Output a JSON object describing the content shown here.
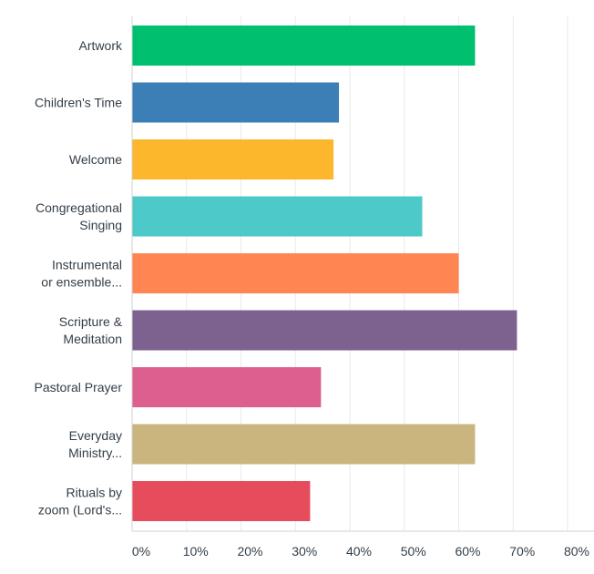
{
  "chart_data": {
    "type": "bar",
    "orientation": "horizontal",
    "title": "",
    "xlabel": "",
    "ylabel": "",
    "xlim": [
      0,
      80
    ],
    "x_ticks": [
      0,
      10,
      20,
      30,
      40,
      50,
      60,
      70,
      80
    ],
    "x_tick_labels": [
      "0%",
      "10%",
      "20%",
      "30%",
      "40%",
      "50%",
      "60%",
      "70%",
      "80%"
    ],
    "grid": true,
    "categories": [
      [
        "Artwork"
      ],
      [
        "Children's Time"
      ],
      [
        "Welcome"
      ],
      [
        "Congregational",
        "Singing"
      ],
      [
        "Instrumental",
        "or ensemble..."
      ],
      [
        "Scripture &",
        "Meditation"
      ],
      [
        "Pastoral Prayer"
      ],
      [
        "Everyday",
        "Ministry..."
      ],
      [
        "Rituals by",
        "zoom (Lord's..."
      ]
    ],
    "values": [
      63,
      38,
      37,
      53.3,
      60,
      70.7,
      34.7,
      63,
      32.7
    ],
    "colors": [
      "#00bf6f",
      "#3b7fb6",
      "#fdb72c",
      "#4ec9ca",
      "#ff8552",
      "#7d628f",
      "#dc5f8f",
      "#cbb57e",
      "#e64c5c"
    ]
  }
}
